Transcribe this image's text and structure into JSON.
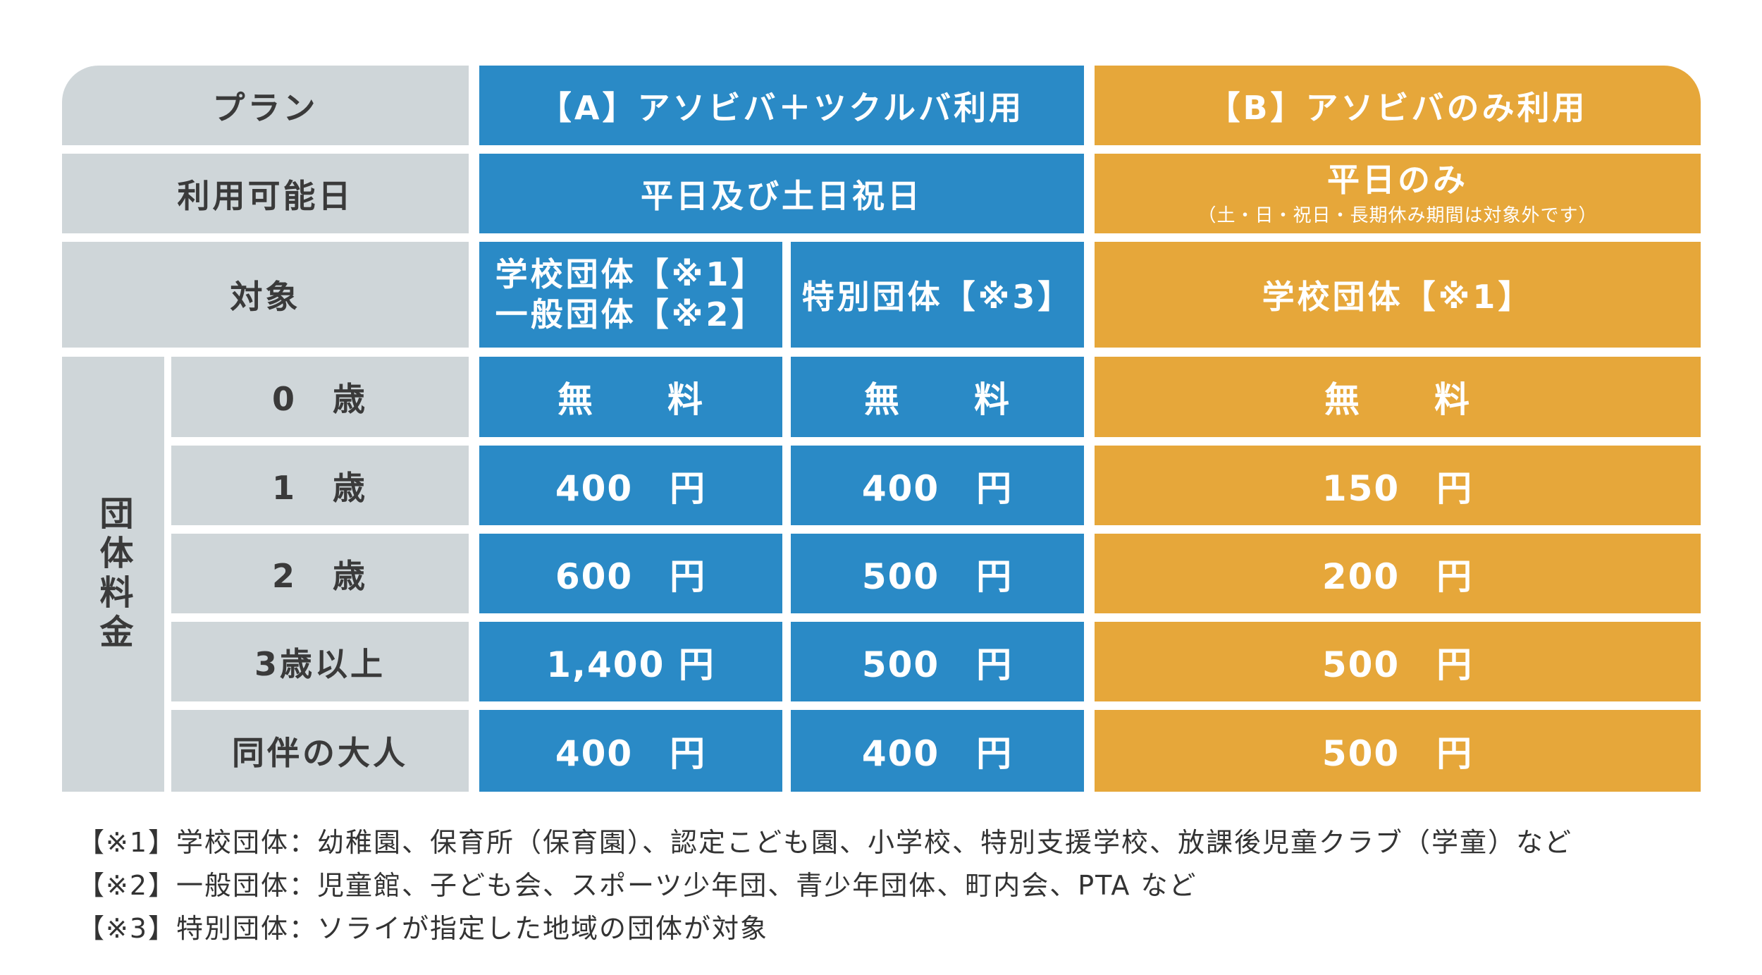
{
  "table": {
    "header": {
      "plan_label": "プラン",
      "plan_a": "【A】アソビバ＋ツクルバ利用",
      "plan_b": "【B】アソビバのみ利用"
    },
    "days": {
      "label": "利用可能日",
      "a": "平日及び土日祝日",
      "b_main": "平日のみ",
      "b_note": "（土・日・祝日・長期休み期間は対象外です）"
    },
    "target": {
      "label": "対象",
      "a1_line1": "学校団体【※1】",
      "a1_line2": "一般団体【※2】",
      "a2": "特別団体【※3】",
      "b": "学校団体【※1】"
    },
    "fees": {
      "group_label": "団体料金",
      "rows": [
        {
          "age": "0　歳",
          "a1": "無　　料",
          "a2": "無　　料",
          "b": "無　　料"
        },
        {
          "age": "1　歳",
          "a1": "400　円",
          "a2": "400　円",
          "b": "150　円"
        },
        {
          "age": "2　歳",
          "a1": "600　円",
          "a2": "500　円",
          "b": "200　円"
        },
        {
          "age": "3歳以上",
          "a1": "1,400 円",
          "a2": "500　円",
          "b": "500　円"
        },
        {
          "age": "同伴の大人",
          "a1": "400　円",
          "a2": "400　円",
          "b": "500　円"
        }
      ]
    }
  },
  "notes": [
    "【※1】学校団体：幼稚園、保育所（保育園）、認定こども園、小学校、特別支援学校、放課後児童クラブ（学童）など",
    "【※2】一般団体：児童館、子ども会、スポーツ少年団、青少年団体、町内会、PTA など",
    "【※3】特別団体：ソライが指定した地域の団体が対象"
  ],
  "colors": {
    "label_bg": "#cfd6d9",
    "plan_a": "#2a8ac6",
    "plan_b": "#e6a73a"
  }
}
